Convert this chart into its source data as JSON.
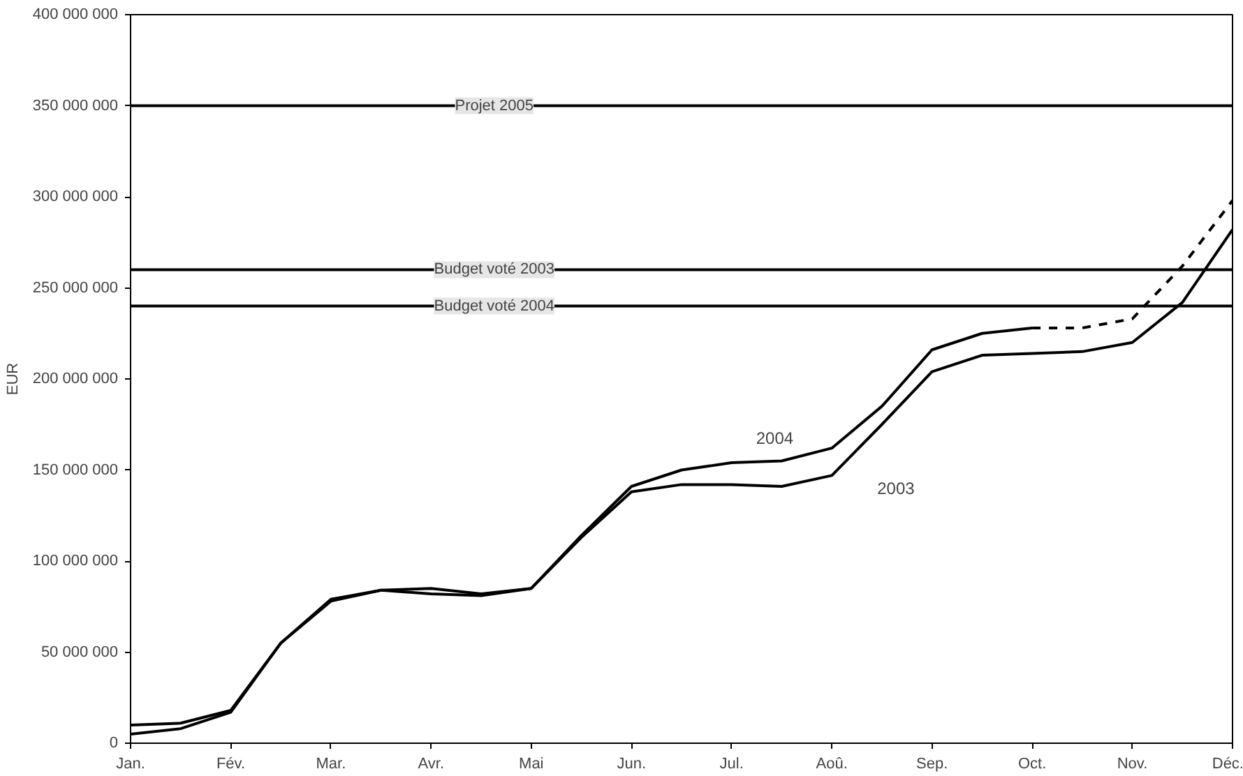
{
  "chart_data": {
    "type": "line",
    "ylabel": "EUR",
    "categories": [
      "Jan.",
      null,
      "Fév.",
      null,
      "Mar.",
      null,
      "Avr.",
      null,
      "Mai",
      null,
      "Jun.",
      null,
      "Jul.",
      null,
      "Aoû.",
      null,
      "Sep.",
      null,
      "Oct.",
      null,
      "Nov.",
      null,
      "Déc."
    ],
    "ylim": [
      0,
      400000000
    ],
    "yticks": [
      {
        "value": 0,
        "label": "0"
      },
      {
        "value": 50000000,
        "label": "50 000 000"
      },
      {
        "value": 100000000,
        "label": "100 000 000"
      },
      {
        "value": 150000000,
        "label": "150 000 000"
      },
      {
        "value": 200000000,
        "label": "200 000 000"
      },
      {
        "value": 250000000,
        "label": "250 000 000"
      },
      {
        "value": 300000000,
        "label": "300 000 000"
      },
      {
        "value": 350000000,
        "label": "350 000 000"
      },
      {
        "value": 400000000,
        "label": "400 000 000"
      }
    ],
    "series": [
      {
        "name": "2004",
        "color": "#000000",
        "values": [
          10000000,
          11000000,
          18000000,
          55000000,
          79000000,
          84000000,
          85000000,
          82000000,
          85000000,
          114000000,
          141000000,
          150000000,
          154000000,
          155000000,
          162000000,
          185000000,
          216000000,
          225000000,
          228000000,
          null,
          null,
          null,
          null
        ]
      },
      {
        "color": "#000000",
        "line_style": "dashed",
        "values": [
          null,
          null,
          null,
          null,
          null,
          null,
          null,
          null,
          null,
          null,
          null,
          null,
          null,
          null,
          null,
          null,
          null,
          null,
          228000000,
          228000000,
          233000000,
          262000000,
          298000000
        ]
      },
      {
        "name": "2003",
        "color": "#000000",
        "values": [
          5000000,
          8000000,
          17000000,
          55000000,
          78000000,
          84000000,
          82000000,
          81000000,
          85000000,
          113000000,
          138000000,
          142000000,
          142000000,
          141000000,
          147000000,
          175000000,
          204000000,
          213000000,
          214000000,
          215000000,
          220000000,
          242000000,
          282000000
        ]
      }
    ],
    "ref_lines": [
      {
        "axis": "y",
        "value": 350000000,
        "label": "Projet 2005",
        "color": "#000000"
      },
      {
        "axis": "y",
        "value": 260000000,
        "label": "Budget voté 2003",
        "color": "#000000"
      },
      {
        "axis": "y",
        "value": 240000000,
        "label": "Budget voté 2004",
        "color": "#000000"
      }
    ],
    "grid": false,
    "marker": "none",
    "line_style": "solid"
  }
}
